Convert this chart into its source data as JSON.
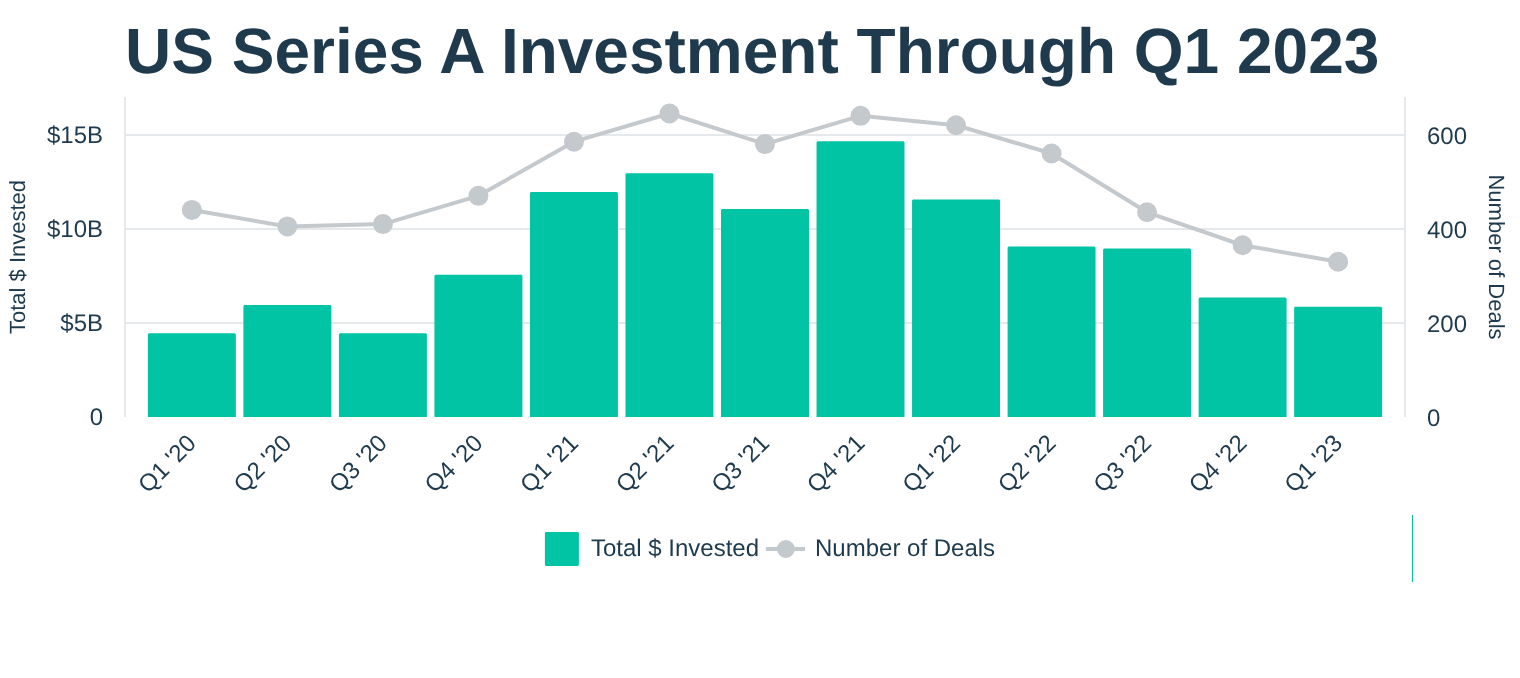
{
  "chart_data": {
    "type": "bar",
    "title": "US Series A Investment Through Q1 2023",
    "categories": [
      "Q1 '20",
      "Q2 '20",
      "Q3 '20",
      "Q4 '20",
      "Q1 '21",
      "Q2 '21",
      "Q3 '21",
      "Q4 '21",
      "Q1 '22",
      "Q2 '22",
      "Q3 '22",
      "Q4 '22",
      "Q1 '23"
    ],
    "ylabel": "Total $ Invested",
    "y2label": "Number of Deals",
    "series": [
      {
        "name": "Total $ Invested",
        "color": "#00c4a4",
        "values": [
          4.4,
          5.9,
          4.4,
          7.5,
          11.9,
          12.9,
          11.0,
          14.6,
          11.5,
          9.0,
          8.9,
          6.3,
          5.8
        ]
      },
      {
        "name": "Number of Deals",
        "color": "#c4c9ce",
        "type": "line",
        "axis": "y2",
        "marker": "circle",
        "values": [
          440,
          405,
          410,
          470,
          585,
          645,
          580,
          640,
          620,
          560,
          435,
          365,
          330
        ]
      }
    ],
    "ylim": [
      0,
      17
    ],
    "yticks": [
      {
        "value": 0,
        "label": "0"
      },
      {
        "value": 5,
        "label": "$5B"
      },
      {
        "value": 10,
        "label": "$10B"
      },
      {
        "value": 15,
        "label": "$15B"
      }
    ],
    "y2lim": [
      0,
      680
    ],
    "y2ticks": [
      0,
      200,
      400,
      600
    ],
    "grid": "y",
    "legend": "bottom"
  }
}
